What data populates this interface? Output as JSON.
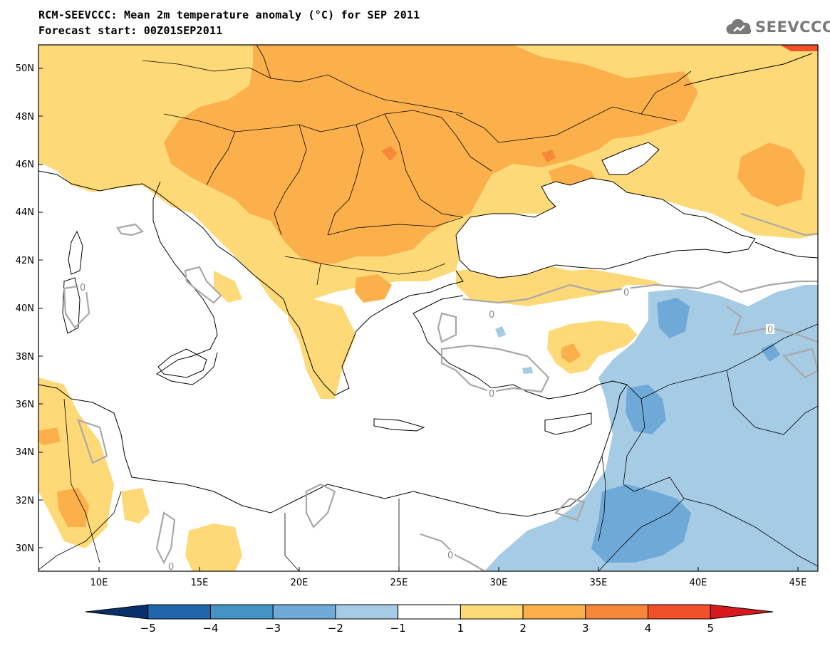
{
  "header": {
    "title": "RCM-SEEVCCC: Mean 2m temperature anomaly (°C) for SEP 2011",
    "subtitle": "Forecast start: 00Z01SEP2011",
    "logo_text": "SEEVCCC"
  },
  "map": {
    "lon_range": [
      7,
      46
    ],
    "lat_range": [
      29,
      51
    ],
    "lat_ticks": [
      "50N",
      "48N",
      "46N",
      "44N",
      "42N",
      "40N",
      "38N",
      "36N",
      "34N",
      "32N",
      "30N"
    ],
    "lon_ticks": [
      "10E",
      "15E",
      "20E",
      "25E",
      "30E",
      "35E",
      "40E",
      "45E"
    ],
    "contour_label": "0",
    "land_color": "#ffffff",
    "sea_color": "#ffffff"
  },
  "colorbar": {
    "levels": [
      "−5",
      "−4",
      "−3",
      "−2",
      "−1",
      "1",
      "2",
      "3",
      "4",
      "5"
    ],
    "colors": [
      "#08306b",
      "#2166ac",
      "#4393c3",
      "#6fa9d8",
      "#a6cbe4",
      "#ffffff",
      "#fdd978",
      "#fbb04b",
      "#f7883a",
      "#f24f2b",
      "#d7191c"
    ]
  }
}
